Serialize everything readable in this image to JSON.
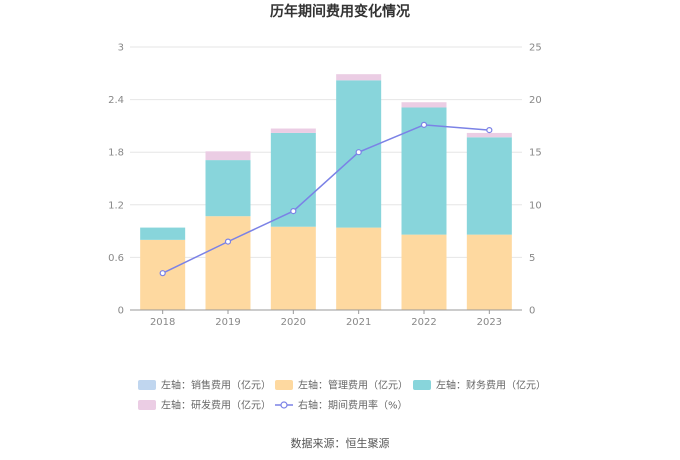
{
  "chart_data": {
    "type": "bar",
    "title": "历年期间费用变化情况",
    "categories": [
      "2018",
      "2019",
      "2020",
      "2021",
      "2022",
      "2023"
    ],
    "left_axis": {
      "min": 0,
      "max": 3,
      "ticks": [
        "0",
        "0.6",
        "1.2",
        "1.8",
        "2.4",
        "3"
      ]
    },
    "right_axis": {
      "min": 0,
      "max": 25,
      "ticks": [
        "0",
        "5",
        "10",
        "15",
        "20",
        "25"
      ]
    },
    "grid": true,
    "stacked": true,
    "series": [
      {
        "name": "左轴：销售费用（亿元）",
        "kind": "bar",
        "axis": "left",
        "color": "#c0d6ef",
        "values": [
          0,
          0,
          0,
          0,
          0,
          0
        ]
      },
      {
        "name": "左轴：管理费用（亿元）",
        "kind": "bar",
        "axis": "left",
        "color": "#fed9a0",
        "values": [
          0.8,
          1.07,
          0.95,
          0.94,
          0.86,
          0.86
        ]
      },
      {
        "name": "左轴：财务费用（亿元）",
        "kind": "bar",
        "axis": "left",
        "color": "#88d5db",
        "values": [
          0.14,
          0.64,
          1.07,
          1.68,
          1.45,
          1.11
        ]
      },
      {
        "name": "左轴：研发费用（亿元）",
        "kind": "bar",
        "axis": "left",
        "color": "#ebcde4",
        "values": [
          0,
          0.1,
          0.05,
          0.07,
          0.06,
          0.05
        ]
      },
      {
        "name": "右轴：期间费用率（%）",
        "kind": "line",
        "axis": "right",
        "color": "#7b82e6",
        "values": [
          3.5,
          6.5,
          9.4,
          15.0,
          17.6,
          17.1
        ]
      }
    ],
    "legend_position": "bottom"
  },
  "source_text": "数据来源：恒生聚源"
}
